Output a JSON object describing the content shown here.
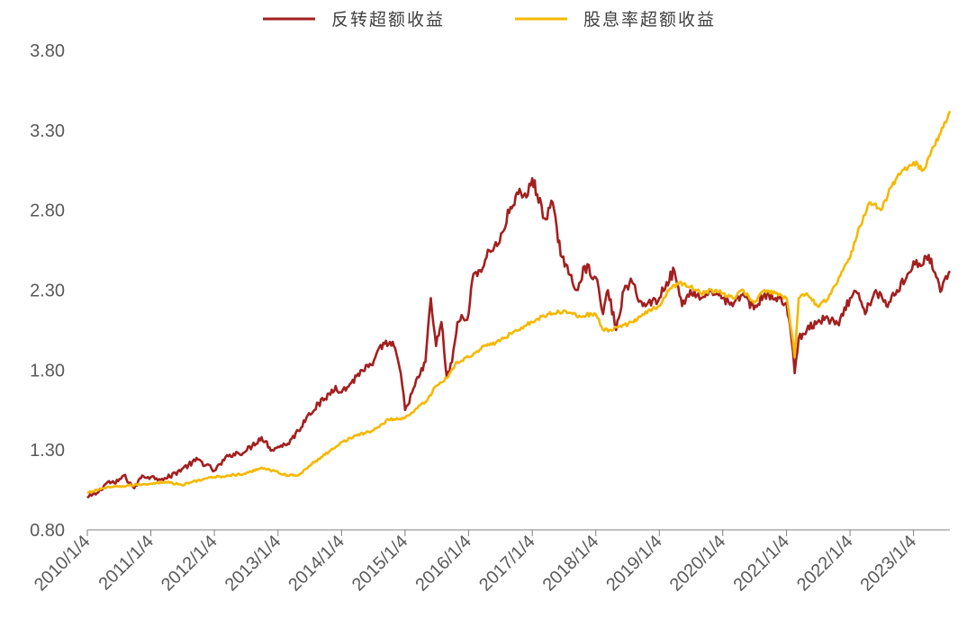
{
  "chart_data": {
    "type": "line",
    "title": "",
    "xlabel": "",
    "ylabel": "",
    "ylim": [
      0.8,
      3.8
    ],
    "y_ticks": [
      "0.80",
      "1.30",
      "1.80",
      "2.30",
      "2.80",
      "3.30",
      "3.80"
    ],
    "x_ticks": [
      "2010/1/4",
      "2011/1/4",
      "2012/1/4",
      "2013/1/4",
      "2014/1/4",
      "2015/1/4",
      "2016/1/4",
      "2017/1/4",
      "2018/1/4",
      "2019/1/4",
      "2020/1/4",
      "2021/1/4",
      "2022/1/4",
      "2023/1/4"
    ],
    "xlim": [
      "2010-01-04",
      "2023-08-01"
    ],
    "grid": false,
    "legend_position": "top-center",
    "series": [
      {
        "name": "反转超额收益",
        "color": "#A31F1F",
        "points": [
          [
            "2010-01-04",
            1.0
          ],
          [
            "2010-03-01",
            1.03
          ],
          [
            "2010-05-01",
            1.1
          ],
          [
            "2010-06-15",
            1.09
          ],
          [
            "2010-08-01",
            1.14
          ],
          [
            "2010-10-01",
            1.06
          ],
          [
            "2010-11-15",
            1.14
          ],
          [
            "2011-01-04",
            1.13
          ],
          [
            "2011-04-01",
            1.12
          ],
          [
            "2011-07-01",
            1.18
          ],
          [
            "2011-10-01",
            1.24
          ],
          [
            "2012-01-04",
            1.17
          ],
          [
            "2012-04-01",
            1.27
          ],
          [
            "2012-07-01",
            1.29
          ],
          [
            "2012-10-01",
            1.38
          ],
          [
            "2012-12-01",
            1.3
          ],
          [
            "2013-01-04",
            1.32
          ],
          [
            "2013-03-01",
            1.34
          ],
          [
            "2013-05-01",
            1.42
          ],
          [
            "2013-07-01",
            1.53
          ],
          [
            "2013-10-01",
            1.62
          ],
          [
            "2013-12-01",
            1.7
          ],
          [
            "2014-01-04",
            1.66
          ],
          [
            "2014-03-01",
            1.72
          ],
          [
            "2014-05-01",
            1.8
          ],
          [
            "2014-07-01",
            1.83
          ],
          [
            "2014-09-01",
            1.97
          ],
          [
            "2014-11-01",
            1.95
          ],
          [
            "2014-12-10",
            1.78
          ],
          [
            "2015-01-04",
            1.55
          ],
          [
            "2015-03-01",
            1.7
          ],
          [
            "2015-05-01",
            1.85
          ],
          [
            "2015-06-01",
            2.25
          ],
          [
            "2015-07-01",
            1.95
          ],
          [
            "2015-08-01",
            2.1
          ],
          [
            "2015-09-01",
            1.75
          ],
          [
            "2015-10-01",
            1.85
          ],
          [
            "2015-11-01",
            2.1
          ],
          [
            "2016-01-04",
            2.15
          ],
          [
            "2016-02-01",
            2.4
          ],
          [
            "2016-04-01",
            2.45
          ],
          [
            "2016-05-01",
            2.55
          ],
          [
            "2016-07-01",
            2.6
          ],
          [
            "2016-09-01",
            2.82
          ],
          [
            "2016-10-15",
            2.9
          ],
          [
            "2016-12-01",
            2.88
          ],
          [
            "2017-01-04",
            3.0
          ],
          [
            "2017-02-01",
            2.9
          ],
          [
            "2017-03-15",
            2.75
          ],
          [
            "2017-05-01",
            2.85
          ],
          [
            "2017-06-01",
            2.6
          ],
          [
            "2017-08-01",
            2.4
          ],
          [
            "2017-09-15",
            2.3
          ],
          [
            "2017-11-01",
            2.45
          ],
          [
            "2018-01-04",
            2.38
          ],
          [
            "2018-02-15",
            2.15
          ],
          [
            "2018-03-15",
            2.3
          ],
          [
            "2018-05-01",
            2.05
          ],
          [
            "2018-06-15",
            2.3
          ],
          [
            "2018-08-01",
            2.35
          ],
          [
            "2018-10-01",
            2.2
          ],
          [
            "2019-01-04",
            2.25
          ],
          [
            "2019-02-15",
            2.35
          ],
          [
            "2019-04-01",
            2.42
          ],
          [
            "2019-05-15",
            2.2
          ],
          [
            "2019-07-01",
            2.3
          ],
          [
            "2019-09-01",
            2.25
          ],
          [
            "2019-11-01",
            2.3
          ],
          [
            "2020-01-04",
            2.25
          ],
          [
            "2020-03-01",
            2.2
          ],
          [
            "2020-05-01",
            2.28
          ],
          [
            "2020-07-01",
            2.18
          ],
          [
            "2020-09-01",
            2.28
          ],
          [
            "2020-11-01",
            2.25
          ],
          [
            "2021-01-04",
            2.22
          ],
          [
            "2021-02-01",
            2.0
          ],
          [
            "2021-02-20",
            1.78
          ],
          [
            "2021-03-15",
            2.0
          ],
          [
            "2021-05-01",
            2.05
          ],
          [
            "2021-07-01",
            2.1
          ],
          [
            "2021-09-01",
            2.12
          ],
          [
            "2021-11-01",
            2.08
          ],
          [
            "2022-01-04",
            2.25
          ],
          [
            "2022-02-15",
            2.28
          ],
          [
            "2022-04-01",
            2.15
          ],
          [
            "2022-06-01",
            2.3
          ],
          [
            "2022-08-01",
            2.2
          ],
          [
            "2022-10-01",
            2.3
          ],
          [
            "2022-12-01",
            2.4
          ],
          [
            "2023-01-04",
            2.48
          ],
          [
            "2023-02-15",
            2.45
          ],
          [
            "2023-04-01",
            2.52
          ],
          [
            "2023-05-15",
            2.38
          ],
          [
            "2023-06-15",
            2.3
          ],
          [
            "2023-08-01",
            2.42
          ]
        ]
      },
      {
        "name": "股息率超额收益",
        "color": "#F5B800",
        "points": [
          [
            "2010-01-04",
            1.03
          ],
          [
            "2010-04-01",
            1.06
          ],
          [
            "2010-07-01",
            1.07
          ],
          [
            "2010-10-01",
            1.08
          ],
          [
            "2011-01-04",
            1.09
          ],
          [
            "2011-04-01",
            1.1
          ],
          [
            "2011-07-01",
            1.08
          ],
          [
            "2011-10-01",
            1.11
          ],
          [
            "2012-01-04",
            1.13
          ],
          [
            "2012-04-01",
            1.14
          ],
          [
            "2012-07-01",
            1.15
          ],
          [
            "2012-10-01",
            1.19
          ],
          [
            "2013-01-04",
            1.16
          ],
          [
            "2013-03-01",
            1.14
          ],
          [
            "2013-05-01",
            1.14
          ],
          [
            "2013-07-01",
            1.2
          ],
          [
            "2013-10-01",
            1.27
          ],
          [
            "2014-01-04",
            1.35
          ],
          [
            "2014-04-01",
            1.39
          ],
          [
            "2014-07-01",
            1.42
          ],
          [
            "2014-10-01",
            1.49
          ],
          [
            "2015-01-04",
            1.5
          ],
          [
            "2015-03-01",
            1.55
          ],
          [
            "2015-05-01",
            1.6
          ],
          [
            "2015-07-01",
            1.7
          ],
          [
            "2015-09-01",
            1.75
          ],
          [
            "2015-11-01",
            1.85
          ],
          [
            "2016-01-04",
            1.88
          ],
          [
            "2016-04-01",
            1.95
          ],
          [
            "2016-07-01",
            1.98
          ],
          [
            "2016-10-01",
            2.05
          ],
          [
            "2017-01-04",
            2.1
          ],
          [
            "2017-04-01",
            2.15
          ],
          [
            "2017-07-01",
            2.17
          ],
          [
            "2017-10-01",
            2.14
          ],
          [
            "2018-01-04",
            2.15
          ],
          [
            "2018-02-15",
            2.05
          ],
          [
            "2018-04-01",
            2.05
          ],
          [
            "2018-06-01",
            2.07
          ],
          [
            "2018-08-01",
            2.1
          ],
          [
            "2018-10-01",
            2.15
          ],
          [
            "2019-01-04",
            2.2
          ],
          [
            "2019-03-01",
            2.3
          ],
          [
            "2019-05-01",
            2.35
          ],
          [
            "2019-07-01",
            2.32
          ],
          [
            "2019-09-01",
            2.28
          ],
          [
            "2019-11-01",
            2.3
          ],
          [
            "2020-01-04",
            2.28
          ],
          [
            "2020-03-01",
            2.25
          ],
          [
            "2020-05-01",
            2.3
          ],
          [
            "2020-07-01",
            2.22
          ],
          [
            "2020-09-01",
            2.3
          ],
          [
            "2020-11-01",
            2.28
          ],
          [
            "2021-01-04",
            2.25
          ],
          [
            "2021-02-01",
            2.05
          ],
          [
            "2021-02-20",
            1.88
          ],
          [
            "2021-03-15",
            2.25
          ],
          [
            "2021-05-01",
            2.28
          ],
          [
            "2021-07-01",
            2.2
          ],
          [
            "2021-09-01",
            2.25
          ],
          [
            "2021-11-01",
            2.38
          ],
          [
            "2022-01-04",
            2.5
          ],
          [
            "2022-03-01",
            2.7
          ],
          [
            "2022-05-01",
            2.85
          ],
          [
            "2022-07-01",
            2.8
          ],
          [
            "2022-09-01",
            2.95
          ],
          [
            "2022-11-01",
            3.05
          ],
          [
            "2023-01-04",
            3.1
          ],
          [
            "2023-03-01",
            3.05
          ],
          [
            "2023-05-01",
            3.2
          ],
          [
            "2023-07-01",
            3.35
          ],
          [
            "2023-08-01",
            3.42
          ]
        ]
      }
    ]
  }
}
